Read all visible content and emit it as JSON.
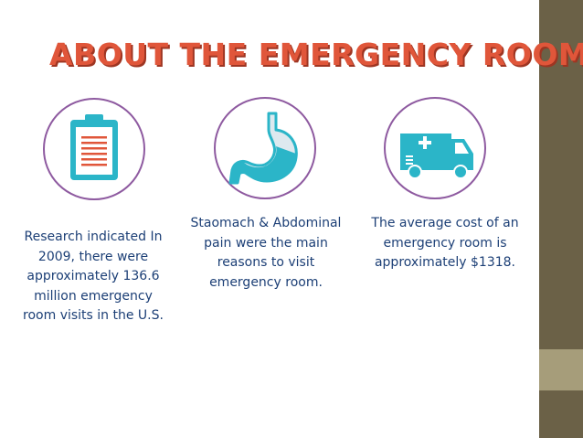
{
  "slide": {
    "title": "ABOUT THE EMERGENCY ROOM",
    "colors": {
      "title": "#e0563a",
      "circle_border": "#8e5aa0",
      "accent_teal": "#2bb5c8",
      "body_text": "#1c3f76",
      "sidebar": "#6b6147",
      "sidebar_accent": "#a69d7a"
    },
    "items": [
      {
        "icon": "clipboard-icon",
        "text": "Research indicated In 2009, there were approximately 136.6 million emergency room visits  in the U.S."
      },
      {
        "icon": "stomach-icon",
        "text": "Staomach & Abdominal pain were the main reasons to visit emergency room."
      },
      {
        "icon": "ambulance-icon",
        "text": "The average cost of an emergency room is approximately $1318."
      }
    ]
  }
}
